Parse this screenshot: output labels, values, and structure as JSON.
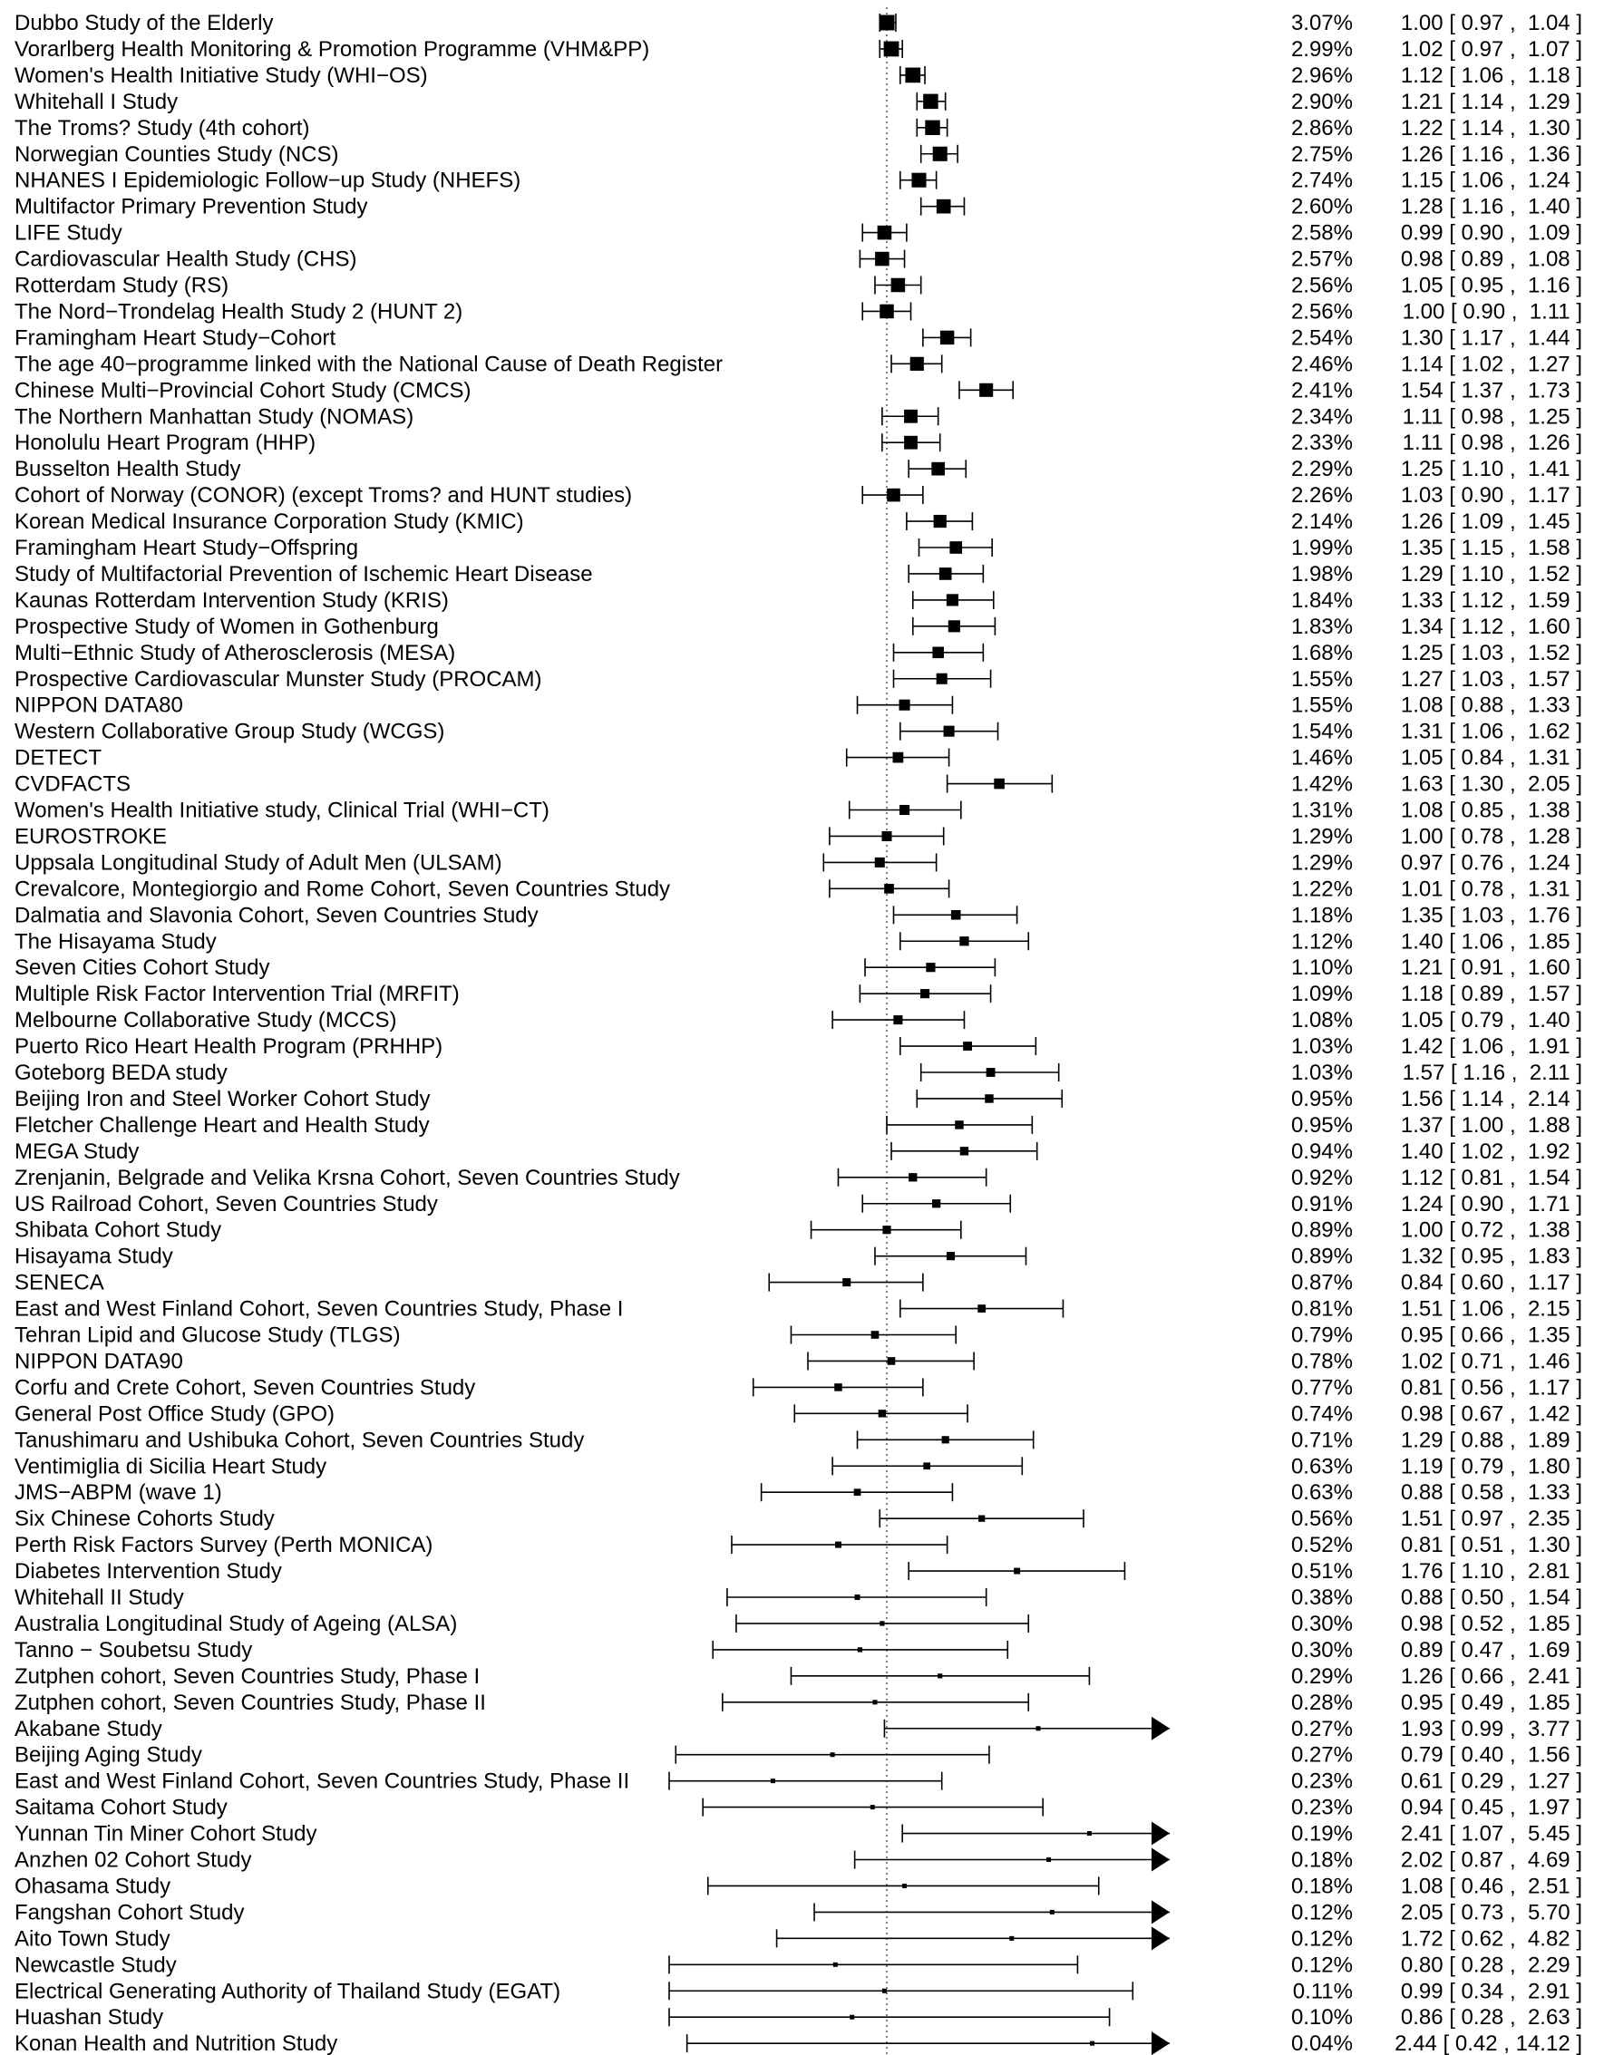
{
  "chart_data": {
    "type": "forest",
    "title": "",
    "xlabel": "",
    "ylabel": "",
    "reference_line": 1.0,
    "x_scale": "log",
    "x_visible_range": [
      0.25,
      5.8
    ],
    "grid": false,
    "legend": "none",
    "studies": [
      {
        "name": "Dubbo Study of the Elderly",
        "weight": "3.07%",
        "est": 1.0,
        "lo": 0.97,
        "hi": 1.04,
        "ci": "1.00 [ 0.97 ,  1.04 ]"
      },
      {
        "name": "Vorarlberg Health Monitoring & Promotion Programme (VHM&PP)",
        "weight": "2.99%",
        "est": 1.02,
        "lo": 0.97,
        "hi": 1.07,
        "ci": "1.02 [ 0.97 ,  1.07 ]"
      },
      {
        "name": "Women's Health Initiative Study (WHI−OS)",
        "weight": "2.96%",
        "est": 1.12,
        "lo": 1.06,
        "hi": 1.18,
        "ci": "1.12 [ 1.06 ,  1.18 ]"
      },
      {
        "name": "Whitehall I Study",
        "weight": "2.90%",
        "est": 1.21,
        "lo": 1.14,
        "hi": 1.29,
        "ci": "1.21 [ 1.14 ,  1.29 ]"
      },
      {
        "name": "The Troms? Study (4th cohort)",
        "weight": "2.86%",
        "est": 1.22,
        "lo": 1.14,
        "hi": 1.3,
        "ci": "1.22 [ 1.14 ,  1.30 ]"
      },
      {
        "name": "Norwegian Counties Study (NCS)",
        "weight": "2.75%",
        "est": 1.26,
        "lo": 1.16,
        "hi": 1.36,
        "ci": "1.26 [ 1.16 ,  1.36 ]"
      },
      {
        "name": "NHANES I Epidemiologic Follow−up Study (NHEFS)",
        "weight": "2.74%",
        "est": 1.15,
        "lo": 1.06,
        "hi": 1.24,
        "ci": "1.15 [ 1.06 ,  1.24 ]"
      },
      {
        "name": "Multifactor Primary Prevention Study",
        "weight": "2.60%",
        "est": 1.28,
        "lo": 1.16,
        "hi": 1.4,
        "ci": "1.28 [ 1.16 ,  1.40 ]"
      },
      {
        "name": "LIFE Study",
        "weight": "2.58%",
        "est": 0.99,
        "lo": 0.9,
        "hi": 1.09,
        "ci": "0.99 [ 0.90 ,  1.09 ]"
      },
      {
        "name": "Cardiovascular Health Study (CHS)",
        "weight": "2.57%",
        "est": 0.98,
        "lo": 0.89,
        "hi": 1.08,
        "ci": "0.98 [ 0.89 ,  1.08 ]"
      },
      {
        "name": "Rotterdam Study (RS)",
        "weight": "2.56%",
        "est": 1.05,
        "lo": 0.95,
        "hi": 1.16,
        "ci": "1.05 [ 0.95 ,  1.16 ]"
      },
      {
        "name": "The Nord−Trondelag Health Study 2 (HUNT 2)",
        "weight": "2.56%",
        "est": 1.0,
        "lo": 0.9,
        "hi": 1.11,
        "ci": "1.00 [ 0.90 ,  1.11 ]"
      },
      {
        "name": "Framingham Heart Study−Cohort",
        "weight": "2.54%",
        "est": 1.3,
        "lo": 1.17,
        "hi": 1.44,
        "ci": "1.30 [ 1.17 ,  1.44 ]"
      },
      {
        "name": "The age 40−programme linked with the National Cause of Death Register",
        "weight": "2.46%",
        "est": 1.14,
        "lo": 1.02,
        "hi": 1.27,
        "ci": "1.14 [ 1.02 ,  1.27 ]"
      },
      {
        "name": "Chinese Multi−Provincial Cohort Study (CMCS)",
        "weight": "2.41%",
        "est": 1.54,
        "lo": 1.37,
        "hi": 1.73,
        "ci": "1.54 [ 1.37 ,  1.73 ]"
      },
      {
        "name": "The Northern Manhattan Study (NOMAS)",
        "weight": "2.34%",
        "est": 1.11,
        "lo": 0.98,
        "hi": 1.25,
        "ci": "1.11 [ 0.98 ,  1.25 ]"
      },
      {
        "name": "Honolulu Heart Program (HHP)",
        "weight": "2.33%",
        "est": 1.11,
        "lo": 0.98,
        "hi": 1.26,
        "ci": "1.11 [ 0.98 ,  1.26 ]"
      },
      {
        "name": "Busselton Health Study",
        "weight": "2.29%",
        "est": 1.25,
        "lo": 1.1,
        "hi": 1.41,
        "ci": "1.25 [ 1.10 ,  1.41 ]"
      },
      {
        "name": "Cohort of Norway (CONOR) (except Troms? and HUNT studies)",
        "weight": "2.26%",
        "est": 1.03,
        "lo": 0.9,
        "hi": 1.17,
        "ci": "1.03 [ 0.90 ,  1.17 ]"
      },
      {
        "name": "Korean Medical Insurance Corporation Study (KMIC)",
        "weight": "2.14%",
        "est": 1.26,
        "lo": 1.09,
        "hi": 1.45,
        "ci": "1.26 [ 1.09 ,  1.45 ]"
      },
      {
        "name": "Framingham Heart Study−Offspring",
        "weight": "1.99%",
        "est": 1.35,
        "lo": 1.15,
        "hi": 1.58,
        "ci": "1.35 [ 1.15 ,  1.58 ]"
      },
      {
        "name": "Study of Multifactorial Prevention of Ischemic Heart Disease",
        "weight": "1.98%",
        "est": 1.29,
        "lo": 1.1,
        "hi": 1.52,
        "ci": "1.29 [ 1.10 ,  1.52 ]"
      },
      {
        "name": "Kaunas Rotterdam Intervention Study (KRIS)",
        "weight": "1.84%",
        "est": 1.33,
        "lo": 1.12,
        "hi": 1.59,
        "ci": "1.33 [ 1.12 ,  1.59 ]"
      },
      {
        "name": "Prospective Study of Women in Gothenburg",
        "weight": "1.83%",
        "est": 1.34,
        "lo": 1.12,
        "hi": 1.6,
        "ci": "1.34 [ 1.12 ,  1.60 ]"
      },
      {
        "name": "Multi−Ethnic Study of Atherosclerosis (MESA)",
        "weight": "1.68%",
        "est": 1.25,
        "lo": 1.03,
        "hi": 1.52,
        "ci": "1.25 [ 1.03 ,  1.52 ]"
      },
      {
        "name": "Prospective Cardiovascular Munster Study (PROCAM)",
        "weight": "1.55%",
        "est": 1.27,
        "lo": 1.03,
        "hi": 1.57,
        "ci": "1.27 [ 1.03 ,  1.57 ]"
      },
      {
        "name": "NIPPON DATA80",
        "weight": "1.55%",
        "est": 1.08,
        "lo": 0.88,
        "hi": 1.33,
        "ci": "1.08 [ 0.88 ,  1.33 ]"
      },
      {
        "name": "Western Collaborative Group Study (WCGS)",
        "weight": "1.54%",
        "est": 1.31,
        "lo": 1.06,
        "hi": 1.62,
        "ci": "1.31 [ 1.06 ,  1.62 ]"
      },
      {
        "name": "DETECT",
        "weight": "1.46%",
        "est": 1.05,
        "lo": 0.84,
        "hi": 1.31,
        "ci": "1.05 [ 0.84 ,  1.31 ]"
      },
      {
        "name": "CVDFACTS",
        "weight": "1.42%",
        "est": 1.63,
        "lo": 1.3,
        "hi": 2.05,
        "ci": "1.63 [ 1.30 ,  2.05 ]"
      },
      {
        "name": "Women's Health Initiative study, Clinical Trial (WHI−CT)",
        "weight": "1.31%",
        "est": 1.08,
        "lo": 0.85,
        "hi": 1.38,
        "ci": "1.08 [ 0.85 ,  1.38 ]"
      },
      {
        "name": "EUROSTROKE",
        "weight": "1.29%",
        "est": 1.0,
        "lo": 0.78,
        "hi": 1.28,
        "ci": "1.00 [ 0.78 ,  1.28 ]"
      },
      {
        "name": "Uppsala Longitudinal Study of Adult Men (ULSAM)",
        "weight": "1.29%",
        "est": 0.97,
        "lo": 0.76,
        "hi": 1.24,
        "ci": "0.97 [ 0.76 ,  1.24 ]"
      },
      {
        "name": "Crevalcore, Montegiorgio and Rome Cohort, Seven Countries Study",
        "weight": "1.22%",
        "est": 1.01,
        "lo": 0.78,
        "hi": 1.31,
        "ci": "1.01 [ 0.78 ,  1.31 ]"
      },
      {
        "name": "Dalmatia and Slavonia Cohort, Seven Countries Study",
        "weight": "1.18%",
        "est": 1.35,
        "lo": 1.03,
        "hi": 1.76,
        "ci": "1.35 [ 1.03 ,  1.76 ]"
      },
      {
        "name": "The Hisayama Study",
        "weight": "1.12%",
        "est": 1.4,
        "lo": 1.06,
        "hi": 1.85,
        "ci": "1.40 [ 1.06 ,  1.85 ]"
      },
      {
        "name": "Seven Cities Cohort Study",
        "weight": "1.10%",
        "est": 1.21,
        "lo": 0.91,
        "hi": 1.6,
        "ci": "1.21 [ 0.91 ,  1.60 ]"
      },
      {
        "name": "Multiple Risk Factor Intervention Trial (MRFIT)",
        "weight": "1.09%",
        "est": 1.18,
        "lo": 0.89,
        "hi": 1.57,
        "ci": "1.18 [ 0.89 ,  1.57 ]"
      },
      {
        "name": "Melbourne Collaborative Study (MCCS)",
        "weight": "1.08%",
        "est": 1.05,
        "lo": 0.79,
        "hi": 1.4,
        "ci": "1.05 [ 0.79 ,  1.40 ]"
      },
      {
        "name": "Puerto Rico Heart Health Program (PRHHP)",
        "weight": "1.03%",
        "est": 1.42,
        "lo": 1.06,
        "hi": 1.91,
        "ci": "1.42 [ 1.06 ,  1.91 ]"
      },
      {
        "name": "Goteborg BEDA study",
        "weight": "1.03%",
        "est": 1.57,
        "lo": 1.16,
        "hi": 2.11,
        "ci": "1.57 [ 1.16 ,  2.11 ]"
      },
      {
        "name": "Beijing Iron and Steel Worker Cohort Study",
        "weight": "0.95%",
        "est": 1.56,
        "lo": 1.14,
        "hi": 2.14,
        "ci": "1.56 [ 1.14 ,  2.14 ]"
      },
      {
        "name": "Fletcher Challenge Heart and Health Study",
        "weight": "0.95%",
        "est": 1.37,
        "lo": 1.0,
        "hi": 1.88,
        "ci": "1.37 [ 1.00 ,  1.88 ]"
      },
      {
        "name": "MEGA Study",
        "weight": "0.94%",
        "est": 1.4,
        "lo": 1.02,
        "hi": 1.92,
        "ci": "1.40 [ 1.02 ,  1.92 ]"
      },
      {
        "name": "Zrenjanin, Belgrade and Velika Krsna Cohort, Seven Countries Study",
        "weight": "0.92%",
        "est": 1.12,
        "lo": 0.81,
        "hi": 1.54,
        "ci": "1.12 [ 0.81 ,  1.54 ]"
      },
      {
        "name": "US Railroad Cohort, Seven Countries Study",
        "weight": "0.91%",
        "est": 1.24,
        "lo": 0.9,
        "hi": 1.71,
        "ci": "1.24 [ 0.90 ,  1.71 ]"
      },
      {
        "name": "Shibata Cohort Study",
        "weight": "0.89%",
        "est": 1.0,
        "lo": 0.72,
        "hi": 1.38,
        "ci": "1.00 [ 0.72 ,  1.38 ]"
      },
      {
        "name": "Hisayama Study",
        "weight": "0.89%",
        "est": 1.32,
        "lo": 0.95,
        "hi": 1.83,
        "ci": "1.32 [ 0.95 ,  1.83 ]"
      },
      {
        "name": "SENECA",
        "weight": "0.87%",
        "est": 0.84,
        "lo": 0.6,
        "hi": 1.17,
        "ci": "0.84 [ 0.60 ,  1.17 ]"
      },
      {
        "name": "East and West Finland Cohort, Seven Countries Study, Phase I",
        "weight": "0.81%",
        "est": 1.51,
        "lo": 1.06,
        "hi": 2.15,
        "ci": "1.51 [ 1.06 ,  2.15 ]"
      },
      {
        "name": "Tehran Lipid and Glucose Study (TLGS)",
        "weight": "0.79%",
        "est": 0.95,
        "lo": 0.66,
        "hi": 1.35,
        "ci": "0.95 [ 0.66 ,  1.35 ]"
      },
      {
        "name": "NIPPON DATA90",
        "weight": "0.78%",
        "est": 1.02,
        "lo": 0.71,
        "hi": 1.46,
        "ci": "1.02 [ 0.71 ,  1.46 ]"
      },
      {
        "name": "Corfu and Crete Cohort, Seven Countries Study",
        "weight": "0.77%",
        "est": 0.81,
        "lo": 0.56,
        "hi": 1.17,
        "ci": "0.81 [ 0.56 ,  1.17 ]"
      },
      {
        "name": "General Post Office Study (GPO)",
        "weight": "0.74%",
        "est": 0.98,
        "lo": 0.67,
        "hi": 1.42,
        "ci": "0.98 [ 0.67 ,  1.42 ]"
      },
      {
        "name": "Tanushimaru and Ushibuka Cohort, Seven Countries Study",
        "weight": "0.71%",
        "est": 1.29,
        "lo": 0.88,
        "hi": 1.89,
        "ci": "1.29 [ 0.88 ,  1.89 ]"
      },
      {
        "name": "Ventimiglia di Sicilia Heart Study",
        "weight": "0.63%",
        "est": 1.19,
        "lo": 0.79,
        "hi": 1.8,
        "ci": "1.19 [ 0.79 ,  1.80 ]"
      },
      {
        "name": "JMS−ABPM (wave 1)",
        "weight": "0.63%",
        "est": 0.88,
        "lo": 0.58,
        "hi": 1.33,
        "ci": "0.88 [ 0.58 ,  1.33 ]"
      },
      {
        "name": "Six Chinese Cohorts Study",
        "weight": "0.56%",
        "est": 1.51,
        "lo": 0.97,
        "hi": 2.35,
        "ci": "1.51 [ 0.97 ,  2.35 ]"
      },
      {
        "name": "Perth Risk Factors Survey (Perth MONICA)",
        "weight": "0.52%",
        "est": 0.81,
        "lo": 0.51,
        "hi": 1.3,
        "ci": "0.81 [ 0.51 ,  1.30 ]"
      },
      {
        "name": "Diabetes Intervention Study",
        "weight": "0.51%",
        "est": 1.76,
        "lo": 1.1,
        "hi": 2.81,
        "ci": "1.76 [ 1.10 ,  2.81 ]"
      },
      {
        "name": "Whitehall II Study",
        "weight": "0.38%",
        "est": 0.88,
        "lo": 0.5,
        "hi": 1.54,
        "ci": "0.88 [ 0.50 ,  1.54 ]"
      },
      {
        "name": "Australia Longitudinal Study of Ageing (ALSA)",
        "weight": "0.30%",
        "est": 0.98,
        "lo": 0.52,
        "hi": 1.85,
        "ci": "0.98 [ 0.52 ,  1.85 ]"
      },
      {
        "name": "Tanno − Soubetsu Study",
        "weight": "0.30%",
        "est": 0.89,
        "lo": 0.47,
        "hi": 1.69,
        "ci": "0.89 [ 0.47 ,  1.69 ]"
      },
      {
        "name": "Zutphen cohort, Seven Countries Study, Phase I",
        "weight": "0.29%",
        "est": 1.26,
        "lo": 0.66,
        "hi": 2.41,
        "ci": "1.26 [ 0.66 ,  2.41 ]"
      },
      {
        "name": "Zutphen cohort, Seven Countries Study, Phase II",
        "weight": "0.28%",
        "est": 0.95,
        "lo": 0.49,
        "hi": 1.85,
        "ci": "0.95 [ 0.49 ,  1.85 ]"
      },
      {
        "name": "Akabane Study",
        "weight": "0.27%",
        "est": 1.93,
        "lo": 0.99,
        "hi": 3.77,
        "ci": "1.93 [ 0.99 ,  3.77 ]"
      },
      {
        "name": "Beijing Aging Study",
        "weight": "0.27%",
        "est": 0.79,
        "lo": 0.4,
        "hi": 1.56,
        "ci": "0.79 [ 0.40 ,  1.56 ]"
      },
      {
        "name": "East and West Finland Cohort, Seven Countries Study, Phase II",
        "weight": "0.23%",
        "est": 0.61,
        "lo": 0.29,
        "hi": 1.27,
        "ci": "0.61 [ 0.29 ,  1.27 ]"
      },
      {
        "name": "Saitama Cohort Study",
        "weight": "0.23%",
        "est": 0.94,
        "lo": 0.45,
        "hi": 1.97,
        "ci": "0.94 [ 0.45 ,  1.97 ]"
      },
      {
        "name": "Yunnan Tin Miner Cohort Study",
        "weight": "0.19%",
        "est": 2.41,
        "lo": 1.07,
        "hi": 5.45,
        "ci": "2.41 [ 1.07 ,  5.45 ]"
      },
      {
        "name": "Anzhen 02 Cohort Study",
        "weight": "0.18%",
        "est": 2.02,
        "lo": 0.87,
        "hi": 4.69,
        "ci": "2.02 [ 0.87 ,  4.69 ]"
      },
      {
        "name": "Ohasama Study",
        "weight": "0.18%",
        "est": 1.08,
        "lo": 0.46,
        "hi": 2.51,
        "ci": "1.08 [ 0.46 ,  2.51 ]"
      },
      {
        "name": "Fangshan Cohort Study",
        "weight": "0.12%",
        "est": 2.05,
        "lo": 0.73,
        "hi": 5.7,
        "ci": "2.05 [ 0.73 ,  5.70 ]"
      },
      {
        "name": "Aito Town Study",
        "weight": "0.12%",
        "est": 1.72,
        "lo": 0.62,
        "hi": 4.82,
        "ci": "1.72 [ 0.62 ,  4.82 ]"
      },
      {
        "name": "Newcastle Study",
        "weight": "0.12%",
        "est": 0.8,
        "lo": 0.28,
        "hi": 2.29,
        "ci": "0.80 [ 0.28 ,  2.29 ]"
      },
      {
        "name": "Electrical Generating Authority of Thailand Study (EGAT)",
        "weight": "0.11%",
        "est": 0.99,
        "lo": 0.34,
        "hi": 2.91,
        "ci": "0.99 [ 0.34 ,  2.91 ]"
      },
      {
        "name": "Huashan Study",
        "weight": "0.10%",
        "est": 0.86,
        "lo": 0.28,
        "hi": 2.63,
        "ci": "0.86 [ 0.28 ,  2.63 ]"
      },
      {
        "name": "Konan Health and Nutrition Study",
        "weight": "0.04%",
        "est": 2.44,
        "lo": 0.42,
        "hi": 14.12,
        "ci": "2.44 [ 0.42 , 14.12 ]"
      }
    ]
  }
}
